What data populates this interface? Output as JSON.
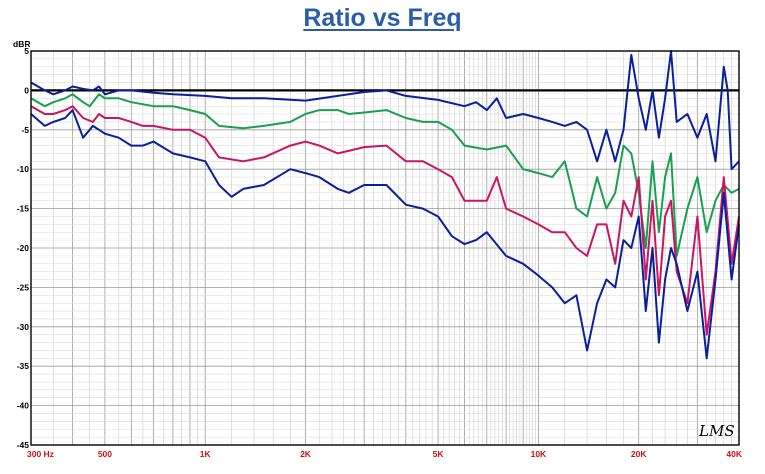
{
  "chart_data": {
    "type": "line",
    "title": "Ratio vs Freq",
    "ylabel": "dBR",
    "xlabel": "",
    "x_scale": "log",
    "xlim": [
      300,
      40000
    ],
    "ylim": [
      -45,
      5
    ],
    "y_ticks": [
      5,
      0,
      -5,
      -10,
      -15,
      -20,
      -25,
      -30,
      -35,
      -40,
      -45
    ],
    "x_ticks": [
      {
        "value": 300,
        "label": "300 Hz"
      },
      {
        "value": 500,
        "label": "500"
      },
      {
        "value": 1000,
        "label": "1K"
      },
      {
        "value": 2000,
        "label": "2K"
      },
      {
        "value": 5000,
        "label": "5K"
      },
      {
        "value": 10000,
        "label": "10K"
      },
      {
        "value": 20000,
        "label": "20K"
      },
      {
        "value": 40000,
        "label": "40K"
      }
    ],
    "grid": true,
    "reference_line": 0,
    "watermark": "LMS",
    "series": [
      {
        "color": "#0a1fa0",
        "points": [
          [
            300,
            1
          ],
          [
            330,
            0
          ],
          [
            350,
            -0.5
          ],
          [
            380,
            0
          ],
          [
            400,
            0.5
          ],
          [
            430,
            0.2
          ],
          [
            460,
            0
          ],
          [
            480,
            0.5
          ],
          [
            500,
            -0.5
          ],
          [
            550,
            0
          ],
          [
            600,
            0
          ],
          [
            700,
            -0.3
          ],
          [
            800,
            -0.5
          ],
          [
            1000,
            -0.7
          ],
          [
            1200,
            -1
          ],
          [
            1500,
            -1
          ],
          [
            2000,
            -1.3
          ],
          [
            2500,
            -0.7
          ],
          [
            3000,
            -0.2
          ],
          [
            3500,
            0
          ],
          [
            4000,
            -0.7
          ],
          [
            5000,
            -1.2
          ],
          [
            6000,
            -2
          ],
          [
            6500,
            -1.5
          ],
          [
            7000,
            -2.5
          ],
          [
            7500,
            -1
          ],
          [
            8000,
            -3.5
          ],
          [
            9000,
            -3
          ],
          [
            10000,
            -3.5
          ],
          [
            11000,
            -4
          ],
          [
            12000,
            -4.5
          ],
          [
            13000,
            -4
          ],
          [
            14000,
            -5
          ],
          [
            15000,
            -9
          ],
          [
            16000,
            -5
          ],
          [
            17000,
            -9
          ],
          [
            18000,
            -5
          ],
          [
            19000,
            4.5
          ],
          [
            20000,
            -1
          ],
          [
            21000,
            -5
          ],
          [
            22000,
            0
          ],
          [
            23000,
            -6
          ],
          [
            24000,
            -1
          ],
          [
            25000,
            5
          ],
          [
            26000,
            -4
          ],
          [
            28000,
            -3
          ],
          [
            30000,
            -6
          ],
          [
            32000,
            -3
          ],
          [
            34000,
            -9
          ],
          [
            36000,
            3
          ],
          [
            37000,
            0
          ],
          [
            38000,
            -10
          ],
          [
            40000,
            -9
          ]
        ]
      },
      {
        "color": "#18a050",
        "points": [
          [
            300,
            -1
          ],
          [
            330,
            -2
          ],
          [
            350,
            -1.5
          ],
          [
            380,
            -1
          ],
          [
            400,
            -0.5
          ],
          [
            430,
            -1.5
          ],
          [
            450,
            -2
          ],
          [
            480,
            -0.5
          ],
          [
            500,
            -1
          ],
          [
            550,
            -1
          ],
          [
            600,
            -1.5
          ],
          [
            700,
            -2
          ],
          [
            800,
            -2
          ],
          [
            900,
            -2.5
          ],
          [
            1000,
            -3
          ],
          [
            1100,
            -4.5
          ],
          [
            1300,
            -4.8
          ],
          [
            1500,
            -4.5
          ],
          [
            1800,
            -4
          ],
          [
            2000,
            -3
          ],
          [
            2200,
            -2.5
          ],
          [
            2500,
            -2.5
          ],
          [
            2700,
            -3
          ],
          [
            3000,
            -2.8
          ],
          [
            3500,
            -2.5
          ],
          [
            4000,
            -3.5
          ],
          [
            4500,
            -4
          ],
          [
            5000,
            -4
          ],
          [
            5500,
            -5
          ],
          [
            6000,
            -7
          ],
          [
            7000,
            -7.5
          ],
          [
            8000,
            -7
          ],
          [
            9000,
            -10
          ],
          [
            10000,
            -10.5
          ],
          [
            11000,
            -11
          ],
          [
            12000,
            -9
          ],
          [
            13000,
            -15
          ],
          [
            14000,
            -16
          ],
          [
            15000,
            -11
          ],
          [
            16000,
            -15
          ],
          [
            17000,
            -13
          ],
          [
            18000,
            -7
          ],
          [
            19000,
            -8
          ],
          [
            20000,
            -13
          ],
          [
            21000,
            -20
          ],
          [
            22000,
            -9
          ],
          [
            23000,
            -18
          ],
          [
            24000,
            -11
          ],
          [
            25000,
            -8
          ],
          [
            26000,
            -21
          ],
          [
            28000,
            -15
          ],
          [
            30000,
            -11
          ],
          [
            32000,
            -18
          ],
          [
            34000,
            -14
          ],
          [
            36000,
            -12
          ],
          [
            38000,
            -13
          ],
          [
            40000,
            -12.5
          ]
        ]
      },
      {
        "color": "#cc1560",
        "points": [
          [
            300,
            -2
          ],
          [
            330,
            -3
          ],
          [
            350,
            -3
          ],
          [
            380,
            -2.5
          ],
          [
            400,
            -2
          ],
          [
            430,
            -3.5
          ],
          [
            460,
            -4
          ],
          [
            480,
            -3
          ],
          [
            500,
            -3.5
          ],
          [
            550,
            -3.5
          ],
          [
            600,
            -4
          ],
          [
            650,
            -4.5
          ],
          [
            700,
            -4.5
          ],
          [
            800,
            -5
          ],
          [
            900,
            -5
          ],
          [
            1000,
            -6
          ],
          [
            1100,
            -8.5
          ],
          [
            1300,
            -9
          ],
          [
            1500,
            -8.5
          ],
          [
            1800,
            -7
          ],
          [
            2000,
            -6.5
          ],
          [
            2200,
            -7
          ],
          [
            2500,
            -8
          ],
          [
            2800,
            -7.5
          ],
          [
            3000,
            -7.2
          ],
          [
            3500,
            -7
          ],
          [
            4000,
            -9
          ],
          [
            4500,
            -9
          ],
          [
            5000,
            -10
          ],
          [
            5500,
            -11
          ],
          [
            6000,
            -14
          ],
          [
            7000,
            -14
          ],
          [
            7500,
            -11
          ],
          [
            8000,
            -15
          ],
          [
            9000,
            -16
          ],
          [
            10000,
            -17
          ],
          [
            11000,
            -18
          ],
          [
            12000,
            -18
          ],
          [
            13000,
            -20
          ],
          [
            14000,
            -21
          ],
          [
            15000,
            -17
          ],
          [
            16000,
            -17
          ],
          [
            17000,
            -22
          ],
          [
            18000,
            -14
          ],
          [
            19000,
            -16
          ],
          [
            20000,
            -11
          ],
          [
            21000,
            -24
          ],
          [
            22000,
            -14
          ],
          [
            23000,
            -26
          ],
          [
            24000,
            -16
          ],
          [
            25000,
            -14
          ],
          [
            26000,
            -23
          ],
          [
            28000,
            -27
          ],
          [
            30000,
            -16
          ],
          [
            32000,
            -31
          ],
          [
            34000,
            -23
          ],
          [
            36000,
            -11
          ],
          [
            38000,
            -22
          ],
          [
            40000,
            -16
          ]
        ]
      },
      {
        "color": "#0a1fa0",
        "points": [
          [
            300,
            -3
          ],
          [
            330,
            -4.5
          ],
          [
            350,
            -4
          ],
          [
            380,
            -3.5
          ],
          [
            400,
            -2.5
          ],
          [
            430,
            -6
          ],
          [
            460,
            -4.5
          ],
          [
            480,
            -5
          ],
          [
            500,
            -5.5
          ],
          [
            550,
            -6
          ],
          [
            600,
            -7
          ],
          [
            650,
            -7
          ],
          [
            700,
            -6.5
          ],
          [
            800,
            -8
          ],
          [
            900,
            -8.5
          ],
          [
            1000,
            -9
          ],
          [
            1100,
            -12
          ],
          [
            1200,
            -13.5
          ],
          [
            1300,
            -12.5
          ],
          [
            1500,
            -12
          ],
          [
            1800,
            -10
          ],
          [
            2000,
            -10.5
          ],
          [
            2200,
            -11
          ],
          [
            2500,
            -12.5
          ],
          [
            2700,
            -13
          ],
          [
            3000,
            -12
          ],
          [
            3500,
            -12
          ],
          [
            4000,
            -14.5
          ],
          [
            4500,
            -15
          ],
          [
            5000,
            -16
          ],
          [
            5500,
            -18.5
          ],
          [
            6000,
            -19.5
          ],
          [
            6500,
            -19
          ],
          [
            7000,
            -18
          ],
          [
            8000,
            -21
          ],
          [
            9000,
            -22
          ],
          [
            10000,
            -23.5
          ],
          [
            11000,
            -25
          ],
          [
            12000,
            -27
          ],
          [
            13000,
            -26
          ],
          [
            14000,
            -33
          ],
          [
            15000,
            -27
          ],
          [
            16000,
            -24
          ],
          [
            17000,
            -25
          ],
          [
            18000,
            -19
          ],
          [
            19000,
            -20
          ],
          [
            20000,
            -16
          ],
          [
            21000,
            -28
          ],
          [
            22000,
            -20
          ],
          [
            23000,
            -32
          ],
          [
            24000,
            -24
          ],
          [
            25000,
            -20
          ],
          [
            26000,
            -22
          ],
          [
            28000,
            -28
          ],
          [
            30000,
            -23
          ],
          [
            32000,
            -34
          ],
          [
            34000,
            -24
          ],
          [
            36000,
            -13
          ],
          [
            38000,
            -24
          ],
          [
            40000,
            -17
          ]
        ]
      }
    ]
  }
}
